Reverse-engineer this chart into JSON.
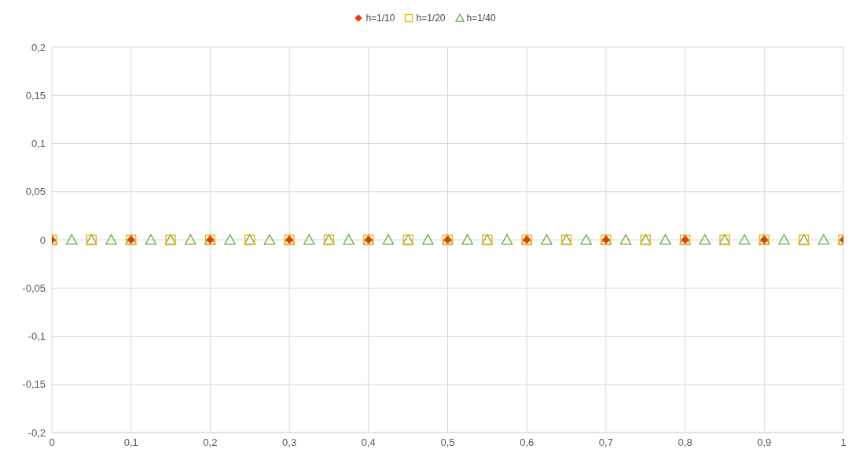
{
  "chart_data": {
    "type": "scatter",
    "legend": "top",
    "grid": true,
    "xlim": [
      0,
      1
    ],
    "ylim": [
      -0.2,
      0.2
    ],
    "xticks": [
      0,
      {
        "value": 0.1,
        "label": "0,1"
      },
      {
        "value": 0.2,
        "label": "0,2"
      },
      {
        "value": 0.3,
        "label": "0,3"
      },
      {
        "value": 0.4,
        "label": "0,4"
      },
      {
        "value": 0.5,
        "label": "0,5"
      },
      {
        "value": 0.6,
        "label": "0,6"
      },
      {
        "value": 0.7,
        "label": "0,7"
      },
      {
        "value": 0.8,
        "label": "0,8"
      },
      {
        "value": 0.9,
        "label": "0,9"
      },
      1
    ],
    "yticks": [
      {
        "value": -0.2,
        "label": "-0,2"
      },
      {
        "value": -0.15,
        "label": "-0,15"
      },
      {
        "value": -0.1,
        "label": "-0,1"
      },
      {
        "value": -0.05,
        "label": "-0,05"
      },
      0,
      {
        "value": 0.05,
        "label": "0,05"
      },
      {
        "value": 0.1,
        "label": "0,1"
      },
      {
        "value": 0.15,
        "label": "0,15"
      },
      {
        "value": 0.2,
        "label": "0,2"
      }
    ],
    "series": [
      {
        "name": "h=1/10",
        "color": "#e8380d",
        "marker": "diamond",
        "x": [
          0,
          0.1,
          0.2,
          0.3,
          0.4,
          0.5,
          0.6,
          0.7,
          0.8,
          0.9,
          1
        ],
        "values": [
          0,
          0,
          0,
          0,
          0,
          0,
          0,
          0,
          0,
          0,
          0
        ]
      },
      {
        "name": "h=1/20",
        "color": "#f0b400",
        "marker": "square",
        "x": [
          0,
          0.05,
          0.1,
          0.15,
          0.2,
          0.25,
          0.3,
          0.35,
          0.4,
          0.45,
          0.5,
          0.55,
          0.6,
          0.65,
          0.7,
          0.75,
          0.8,
          0.85,
          0.9,
          0.95,
          1
        ],
        "values": [
          0,
          0,
          0,
          0,
          0,
          0,
          0,
          0,
          0,
          0,
          0,
          0,
          0,
          0,
          0,
          0,
          0,
          0,
          0,
          0,
          0
        ]
      },
      {
        "name": "h=1/40",
        "color": "#70ad47",
        "marker": "triangle",
        "x": [
          0,
          0.025,
          0.05,
          0.075,
          0.1,
          0.125,
          0.15,
          0.175,
          0.2,
          0.225,
          0.25,
          0.275,
          0.3,
          0.325,
          0.35,
          0.375,
          0.4,
          0.425,
          0.45,
          0.475,
          0.5,
          0.525,
          0.55,
          0.575,
          0.6,
          0.625,
          0.65,
          0.675,
          0.7,
          0.725,
          0.75,
          0.775,
          0.8,
          0.825,
          0.85,
          0.875,
          0.9,
          0.925,
          0.95,
          0.975,
          1
        ],
        "values": [
          0,
          0,
          0,
          0,
          0,
          0,
          0,
          0,
          0,
          0,
          0,
          0,
          0,
          0,
          0,
          0,
          0,
          0,
          0,
          0,
          0,
          0,
          0,
          0,
          0,
          0,
          0,
          0,
          0,
          0,
          0,
          0,
          0,
          0,
          0,
          0,
          0,
          0,
          0,
          0,
          0
        ]
      }
    ]
  }
}
